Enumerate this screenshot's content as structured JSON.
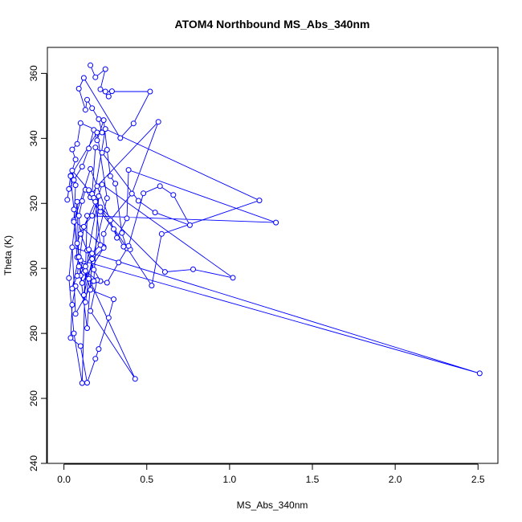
{
  "colors": {
    "series": "#0000ff",
    "axis": "#000000",
    "background": "#ffffff"
  },
  "chart_data": {
    "type": "line",
    "markers": "open-circle",
    "title": "ATOM4 Northbound MS_Abs_340nm",
    "xlabel": "MS_Abs_340nm",
    "ylabel": "Theta (K)",
    "xlim": [
      -0.1,
      2.62
    ],
    "ylim": [
      240,
      368
    ],
    "xticks": [
      0.0,
      0.5,
      1.0,
      1.5,
      2.0,
      2.5
    ],
    "xtick_labels": [
      "0.0",
      "0.5",
      "1.0",
      "1.5",
      "2.0",
      "2.5"
    ],
    "yticks": [
      240,
      260,
      280,
      300,
      320,
      340,
      360
    ],
    "ytick_labels": [
      "240",
      "260",
      "280",
      "300",
      "320",
      "340",
      "360"
    ],
    "grid": false,
    "series": [
      {
        "x": [
          0.16,
          0.19,
          0.25,
          0.22,
          0.27,
          0.29,
          0.25,
          0.52,
          0.42,
          0.34,
          0.12,
          0.09,
          0.13,
          0.14,
          0.17,
          0.21,
          0.23,
          0.1,
          0.08,
          0.05,
          0.07,
          0.04,
          0.02,
          0.03,
          0.06,
          0.11,
          0.15,
          0.18,
          0.2,
          0.24,
          0.26,
          0.28,
          0.31,
          0.35,
          0.38,
          0.4,
          0.36,
          0.3,
          0.22,
          0.16,
          0.13,
          0.11,
          0.09,
          0.1,
          0.14,
          0.18,
          0.22,
          0.26,
          0.33,
          0.39,
          0.48,
          0.58,
          0.66,
          0.76,
          0.55,
          0.45,
          0.23,
          0.19,
          0.17,
          0.2,
          0.57,
          0.41,
          0.28,
          0.24,
          0.24,
          0.06,
          0.08,
          0.12,
          0.15,
          0.13,
          0.07,
          0.05,
          0.04,
          0.1,
          0.14,
          0.19,
          0.21,
          0.27,
          0.3,
          0.16,
          0.12,
          0.09,
          0.08,
          0.11,
          0.17,
          0.23,
          1.02,
          0.78,
          0.61,
          0.22,
          0.18,
          0.25,
          1.18,
          0.59,
          0.53,
          0.15,
          0.05,
          0.07,
          0.06,
          0.16,
          0.32,
          0.38,
          0.39,
          1.28,
          0.14,
          0.11,
          0.06,
          0.03,
          0.08,
          0.09,
          0.2,
          0.16,
          0.43,
          0.13,
          0.1,
          2.51,
          0.05,
          0.07,
          0.18,
          0.21,
          0.15,
          0.12,
          0.26,
          0.2,
          0.04,
          0.06,
          0.1,
          0.14,
          0.17,
          0.24,
          0.11,
          0.09,
          0.05,
          0.08,
          0.12,
          0.19,
          0.22,
          0.17,
          0.13
        ],
        "y": [
          362.5,
          358.8,
          361.3,
          355.1,
          352.9,
          354.5,
          354.4,
          354.4,
          344.6,
          340.1,
          358.6,
          355.3,
          348.8,
          351.9,
          349.3,
          345.9,
          341.8,
          344.7,
          338.3,
          336.6,
          333.5,
          328.5,
          321.1,
          324.4,
          327.2,
          331.3,
          336.9,
          342.6,
          339.4,
          345.6,
          336.5,
          328.4,
          326.1,
          310.9,
          306.2,
          305.8,
          306.7,
          312.1,
          317.5,
          321.9,
          324.2,
          320.7,
          316.2,
          310.6,
          305.5,
          299.6,
          296.1,
          295.6,
          301.8,
          306.9,
          323.1,
          325.3,
          322.6,
          313.3,
          317.2,
          320.8,
          335.6,
          337.2,
          322.9,
          325.3,
          345.1,
          323.0,
          314.8,
          310.6,
          306.6,
          314.8,
          303.4,
          298.7,
          296.8,
          289.6,
          294.5,
          288.8,
          278.6,
          276.1,
          264.8,
          272.2,
          275.2,
          284.8,
          290.5,
          293.4,
          300.8,
          303.6,
          307.7,
          312.5,
          316.2,
          325.8,
          297.1,
          299.7,
          298.9,
          318.8,
          321.7,
          342.9,
          320.9,
          310.6,
          294.7,
          324.1,
          330.1,
          325.6,
          314.3,
          330.6,
          309.4,
          315.4,
          330.3,
          314.1,
          316.2,
          264.7,
          280.0,
          297.0,
          320.5,
          300.6,
          296.4,
          286.9,
          266.0,
          299.2,
          302.5,
          267.7,
          306.5,
          286.0,
          296.1,
          322.2,
          305.8,
          291.8,
          321.6,
          341.8,
          328.4,
          318.1,
          297.8,
          281.6,
          302.9,
          306.3,
          295.5,
          303.5,
          293.8,
          297.7,
          312.8,
          320.5,
          307.2,
          304.6,
          300.6
        ]
      }
    ]
  }
}
